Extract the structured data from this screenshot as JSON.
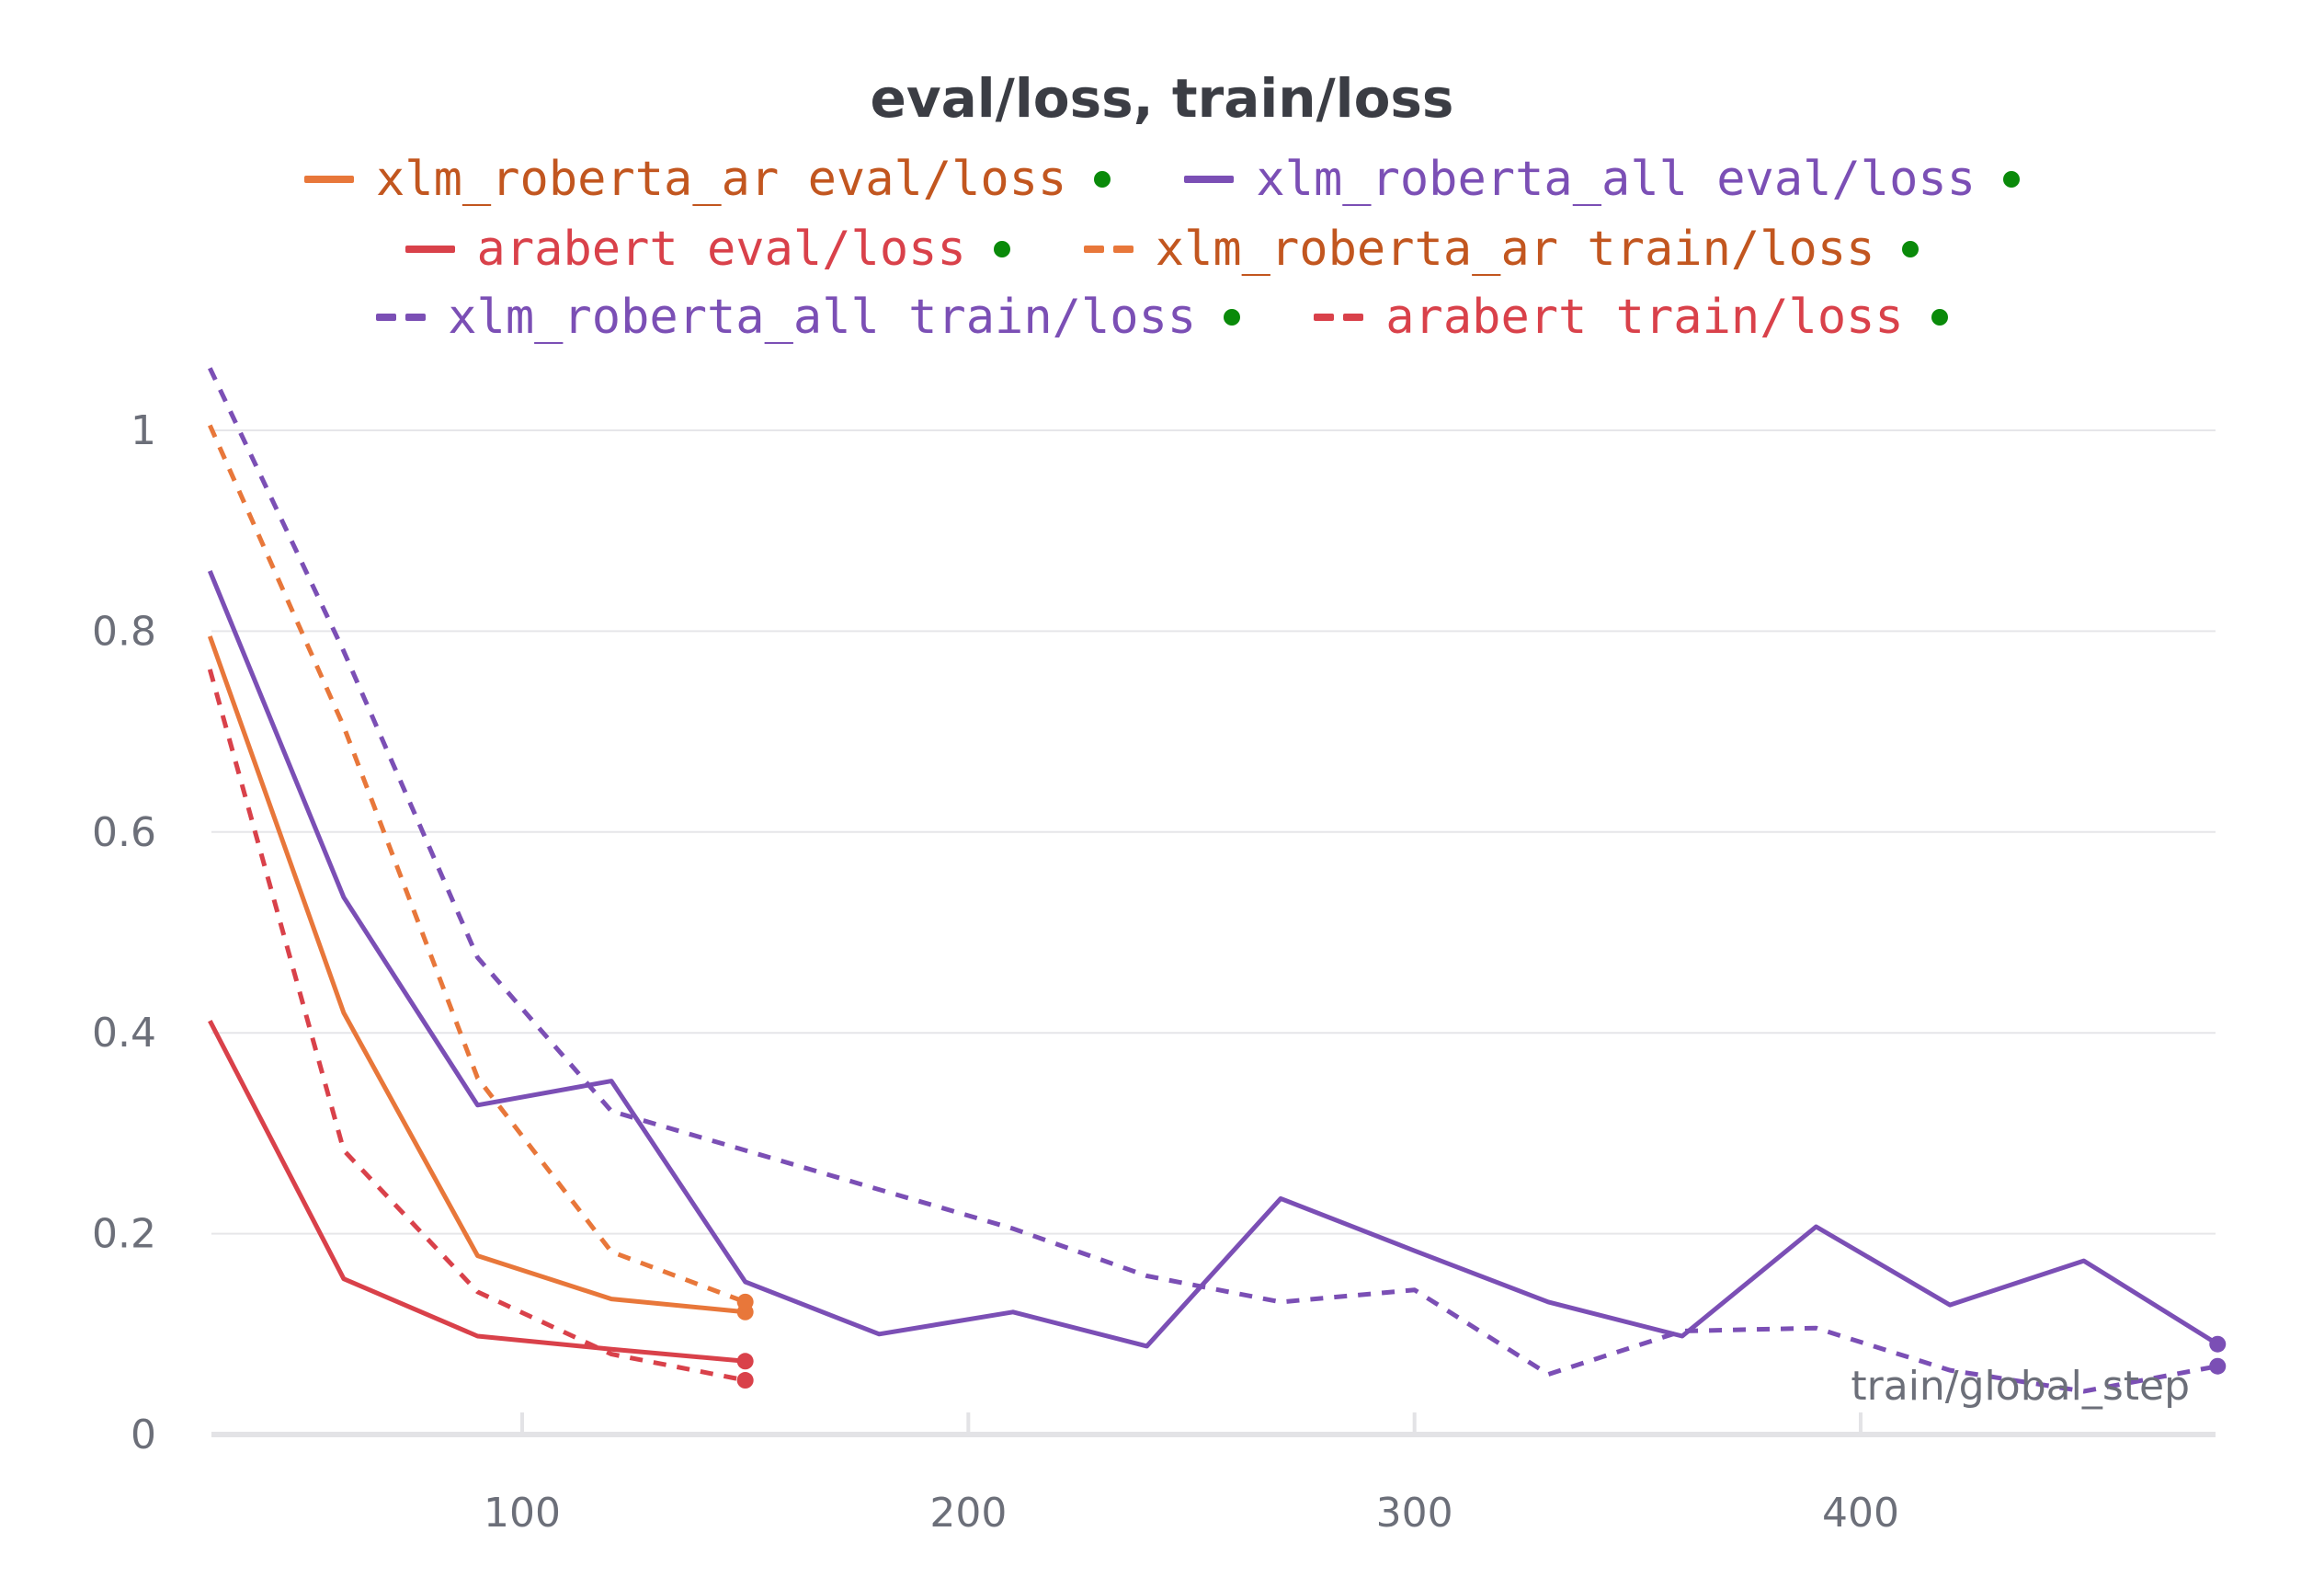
{
  "chart_data": {
    "type": "line",
    "title": "eval/loss, train/loss",
    "xlabel": "train/global_step",
    "ylabel": "",
    "xlim": [
      30,
      480
    ],
    "ylim": [
      0,
      1.05
    ],
    "x_ticks": [
      100,
      200,
      300,
      400
    ],
    "x_tick_labels": [
      "100",
      "200",
      "300",
      "400"
    ],
    "y_ticks": [
      0,
      0.2,
      0.4,
      0.6,
      0.8,
      1
    ],
    "y_tick_labels": [
      "0",
      "0.2",
      "0.4",
      "0.6",
      "0.8",
      "1"
    ],
    "grid": true,
    "legend_position": "top",
    "series": [
      {
        "name": "xlm_roberta_ar eval/loss",
        "color": "#e8773a",
        "dashed": false,
        "x": [
          30,
          60,
          90,
          120,
          150
        ],
        "y": [
          0.795,
          0.42,
          0.178,
          0.135,
          0.122
        ]
      },
      {
        "name": "xlm_roberta_all eval/loss",
        "color": "#7b4fb5",
        "dashed": false,
        "x": [
          30,
          60,
          90,
          120,
          150,
          180,
          210,
          240,
          270,
          300,
          330,
          360,
          390,
          420,
          450,
          480
        ],
        "y": [
          0.86,
          0.535,
          0.328,
          0.352,
          0.152,
          0.1,
          0.122,
          0.088,
          0.235,
          0.183,
          0.132,
          0.098,
          0.207,
          0.129,
          0.173,
          0.09
        ]
      },
      {
        "name": "arabert eval/loss",
        "color": "#d9414a",
        "dashed": false,
        "x": [
          30,
          60,
          90,
          120,
          150
        ],
        "y": [
          0.412,
          0.155,
          0.098,
          0.085,
          0.073
        ]
      },
      {
        "name": "xlm_roberta_ar train/loss",
        "color": "#e8773a",
        "dashed": true,
        "x": [
          30,
          60,
          90,
          120,
          150
        ],
        "y": [
          1.005,
          0.705,
          0.355,
          0.182,
          0.132
        ]
      },
      {
        "name": "xlm_roberta_all train/loss",
        "color": "#7b4fb5",
        "dashed": true,
        "x": [
          30,
          60,
          90,
          120,
          150,
          180,
          210,
          240,
          270,
          300,
          330,
          360,
          390,
          420,
          450,
          480
        ],
        "y": [
          1.062,
          0.78,
          0.475,
          0.322,
          0.283,
          0.244,
          0.205,
          0.158,
          0.132,
          0.144,
          0.06,
          0.103,
          0.106,
          0.064,
          0.043,
          0.068
        ]
      },
      {
        "name": "arabert train/loss",
        "color": "#d9414a",
        "dashed": true,
        "x": [
          30,
          60,
          90,
          120,
          150
        ],
        "y": [
          0.762,
          0.283,
          0.142,
          0.08,
          0.054
        ]
      }
    ]
  },
  "legend": {
    "text_colors": {
      "xlm_roberta_ar": "#c2561f",
      "xlm_roberta_all": "#7b4fb5",
      "arabert": "#d9414a"
    },
    "status_dot_color": "#0a8a0a"
  }
}
